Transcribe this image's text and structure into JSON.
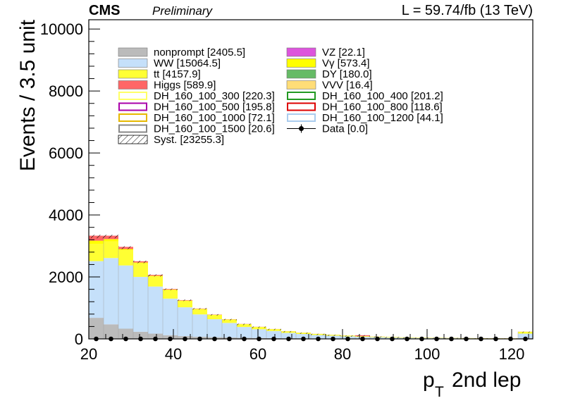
{
  "header": {
    "experiment": "CMS",
    "status": "Preliminary",
    "luminosity": "L = 59.74/fb (13 TeV)"
  },
  "colors": {
    "nonprompt": "#bbbbbb",
    "WW": "#c5e0fa",
    "tt": "#ffff33",
    "Higgs": "#ff6666",
    "VZ": "#dd55dd",
    "Vgamma": "#ffff00",
    "DY": "#66bb66",
    "VVV": "#ffdd77",
    "DH_160_100_300": "#ffff66",
    "DH_160_100_400": "#229922",
    "DH_160_100_500": "#aa00aa",
    "DH_160_100_800": "#dd0000",
    "DH_160_100_1000": "#e6b800",
    "DH_160_100_1200": "#aaccee",
    "DH_160_100_1500": "#888888"
  },
  "chart_data": {
    "type": "bar",
    "title": "",
    "xlabel": "p_{T} 2nd lep",
    "xlabel_main": "p",
    "xlabel_sub": "T",
    "xlabel_rest": "2nd lep",
    "ylabel": "Events / 3.5 unit",
    "xlim": [
      20,
      125
    ],
    "ylim": [
      0,
      10300
    ],
    "xticks": [
      20,
      40,
      60,
      80,
      100,
      120
    ],
    "yticks": [
      0,
      2000,
      4000,
      6000,
      8000,
      10000
    ],
    "ytick_labels": [
      "0",
      "2000",
      "4000",
      "6000",
      "8000",
      "10000"
    ],
    "legend_position": "top-center",
    "bin_edges": [
      20,
      23.5,
      27,
      30.5,
      34,
      37.5,
      41,
      44.5,
      48,
      51.5,
      55,
      58.5,
      62,
      65.5,
      69,
      72.5,
      76,
      79.5,
      83,
      86.5,
      90,
      93.5,
      97,
      100.5,
      104,
      107.5,
      111,
      114.5,
      118,
      121.5,
      125
    ],
    "stack": [
      {
        "name": "nonprompt",
        "color_key": "nonprompt",
        "values": [
          680,
          470,
          330,
          230,
          170,
          120,
          90,
          70,
          55,
          45,
          35,
          30,
          25,
          20,
          18,
          15,
          13,
          11,
          10,
          9,
          8,
          7,
          6,
          5,
          5,
          5,
          4,
          4,
          4,
          30
        ]
      },
      {
        "name": "WW",
        "color_key": "WW",
        "values": [
          1830,
          2140,
          2040,
          1770,
          1520,
          1180,
          930,
          720,
          580,
          470,
          350,
          280,
          230,
          175,
          140,
          110,
          90,
          70,
          55,
          45,
          35,
          28,
          22,
          18,
          15,
          12,
          10,
          8,
          7,
          140
        ]
      },
      {
        "name": "tt",
        "color_key": "tt",
        "values": [
          560,
          540,
          490,
          440,
          330,
          280,
          210,
          175,
          140,
          110,
          90,
          75,
          60,
          50,
          42,
          35,
          30,
          26,
          22,
          19,
          16,
          14,
          12,
          10,
          9,
          8,
          7,
          6,
          5,
          60
        ]
      },
      {
        "name": "Vγ",
        "color_key": "Vgamma",
        "values": [
          100,
          70,
          40,
          25,
          15,
          10,
          7,
          5,
          4,
          3,
          3,
          2,
          2,
          2,
          1,
          1,
          1,
          1,
          1,
          1,
          1,
          1,
          1,
          1,
          1,
          1,
          1,
          1,
          1,
          1
        ]
      },
      {
        "name": "Higgs",
        "color_key": "Higgs",
        "values": [
          160,
          110,
          70,
          40,
          30,
          20,
          15,
          10,
          8,
          6,
          5,
          4,
          3,
          3,
          2,
          2,
          2,
          2,
          30,
          2,
          1,
          1,
          1,
          1,
          1,
          1,
          1,
          1,
          1,
          3
        ]
      }
    ],
    "syst_total": [
      3360,
      3360,
      2990,
      2525,
      2085,
      1628,
      1272,
      994,
      799,
      645,
      490,
      398,
      327,
      253,
      205,
      165,
      137,
      112,
      120,
      79,
      62,
      52,
      42,
      36,
      32,
      28,
      24,
      21,
      19,
      237
    ],
    "data": {
      "name": "Data",
      "x": [
        21.75,
        25.25,
        28.75,
        32.25,
        35.75,
        39.25,
        42.75,
        46.25,
        49.75,
        53.25,
        56.75,
        60.25,
        63.75,
        67.25,
        70.75,
        74.25,
        77.75,
        81.25,
        84.75,
        88.25,
        91.75,
        95.25,
        98.75,
        102.25,
        105.75,
        109.25,
        112.75,
        116.25,
        119.75,
        123.25
      ],
      "y": [
        0,
        0,
        0,
        0,
        0,
        0,
        0,
        0,
        0,
        0,
        0,
        0,
        0,
        0,
        0,
        0,
        0,
        0,
        0,
        0,
        0,
        0,
        0,
        0,
        0,
        0,
        0,
        0,
        0,
        0
      ]
    },
    "legend": [
      {
        "label": "nonprompt [2405.5]",
        "style": "fill",
        "color_key": "nonprompt"
      },
      {
        "label": "VZ [22.1]",
        "style": "fill",
        "color_key": "VZ"
      },
      {
        "label": "WW [15064.5]",
        "style": "fill",
        "color_key": "WW"
      },
      {
        "label": "Vγ [573.4]",
        "style": "fill",
        "color_key": "Vgamma"
      },
      {
        "label": "tt [4157.9]",
        "style": "fill",
        "color_key": "tt"
      },
      {
        "label": "DY [180.0]",
        "style": "fill",
        "color_key": "DY"
      },
      {
        "label": "Higgs [589.9]",
        "style": "fill",
        "color_key": "Higgs"
      },
      {
        "label": "VVV [16.4]",
        "style": "fill",
        "color_key": "VVV"
      },
      {
        "label": "DH_160_100_300 [220.3]",
        "style": "line",
        "color_key": "DH_160_100_300"
      },
      {
        "label": "DH_160_100_400 [201.2]",
        "style": "line",
        "color_key": "DH_160_100_400"
      },
      {
        "label": "DH_160_100_500 [195.8]",
        "style": "line",
        "color_key": "DH_160_100_500"
      },
      {
        "label": "DH_160_100_800 [118.6]",
        "style": "line",
        "color_key": "DH_160_100_800"
      },
      {
        "label": "DH_160_100_1000 [72.1]",
        "style": "line",
        "color_key": "DH_160_100_1000"
      },
      {
        "label": "DH_160_100_1200 [44.1]",
        "style": "line",
        "color_key": "DH_160_100_1200"
      },
      {
        "label": "DH_160_100_1500 [20.6]",
        "style": "line",
        "color_key": "DH_160_100_1500"
      },
      {
        "label": "Data [0.0]",
        "style": "marker",
        "color_key": ""
      },
      {
        "label": "Syst. [23255.3]",
        "style": "hatch",
        "color_key": ""
      }
    ]
  }
}
